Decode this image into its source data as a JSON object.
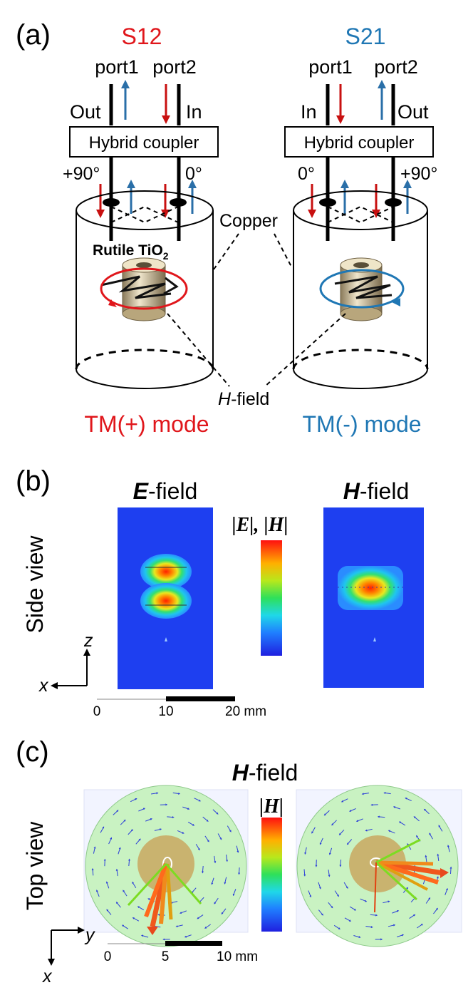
{
  "panel_a": {
    "label": "(a)",
    "left": {
      "title": "S12",
      "port1": "port1",
      "port2": "port2",
      "out": "Out",
      "in": "In",
      "coupler": "Hybrid coupler",
      "phase_left": "+90°",
      "phase_right": "0°",
      "mode": "TM(+) mode",
      "color": "#e0161b"
    },
    "right": {
      "title": "S21",
      "port1": "port1",
      "port2": "port2",
      "in": "In",
      "out": "Out",
      "coupler": "Hybrid coupler",
      "phase_left": "0°",
      "phase_right": "+90°",
      "mode": "TM(-) mode",
      "color": "#1f77b4"
    },
    "rutile_main": "Rutile TiO",
    "rutile_sub": "2",
    "copper": "Copper",
    "hfield_italic": "H",
    "hfield_rest": "-field"
  },
  "panel_b": {
    "label": "(b)",
    "side_view": "Side view",
    "efield_italic": "E",
    "efield_rest": "-field",
    "hfield_italic": "H",
    "hfield_rest": "-field",
    "colorbar_label": "|E|, |H|",
    "axis_z": "z",
    "axis_x": "x",
    "scale": {
      "t0": "0",
      "t1": "10",
      "t2": "20 mm"
    }
  },
  "panel_c": {
    "label": "(c)",
    "title_italic": "H",
    "title_rest": "-field",
    "top_view": "Top view",
    "colorbar_label": "|H|",
    "axis_y": "y",
    "axis_x": "x",
    "scale": {
      "t0": "0",
      "t1": "5",
      "t2": "10 mm"
    }
  },
  "colors": {
    "red": "#e0161b",
    "blue": "#1f77b4",
    "field_bg": "#1e3ff0",
    "disk": "#c9f2c2",
    "dielectric": "#c9a35a"
  }
}
